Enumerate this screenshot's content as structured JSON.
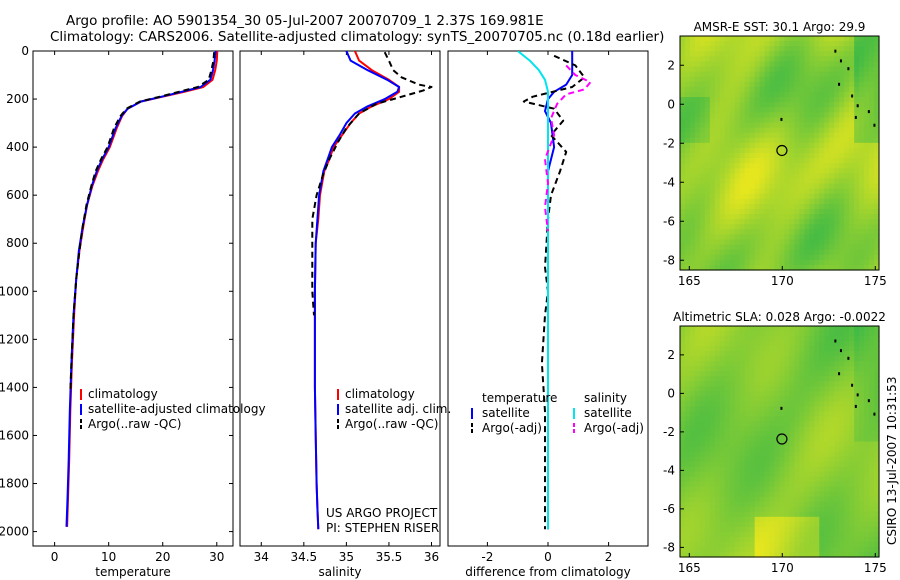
{
  "header": {
    "line1": "Argo profile: AO 5901354_30 05-Jul-2007 20070709_1 2.37S 169.981E",
    "line2": "Climatology: CARS2006. Satellite-adjusted climatology: synTS_20070705.nc (0.18d earlier)"
  },
  "credit": {
    "line1": "US ARGO PROJECT",
    "line2": "PI: STEPHEN RISER"
  },
  "stamp": "CSIRO 13-Jul-2007 10:31:53",
  "colors": {
    "climatology": "#ff0000",
    "satellite": "#0000ff",
    "argo": "#000000",
    "sal_sat": "#00e5ee",
    "sal_argo": "#ff00ff"
  },
  "chart_data": [
    {
      "type": "line",
      "xlabel": "temperature",
      "ylabel": "",
      "xlim": [
        -4,
        33
      ],
      "ylim": [
        2060,
        0
      ],
      "xticks": [
        0,
        10,
        20,
        30
      ],
      "yticks": [
        0,
        200,
        400,
        600,
        800,
        1000,
        1200,
        1400,
        1600,
        1800,
        2000
      ],
      "legend": [
        "climatology",
        "satellite-adjusted climatology",
        "Argo(..raw -QC)"
      ],
      "series": [
        {
          "name": "climatology",
          "color": "#ff0000",
          "dash": "",
          "x": [
            30.1,
            30.0,
            29.7,
            29.2,
            27.5,
            24.0,
            20.0,
            16.0,
            13.5,
            12.5,
            11.5,
            10.2,
            9.0,
            8.0,
            7.0,
            6.0,
            5.3,
            4.6,
            4.0,
            3.6,
            3.2,
            2.9,
            2.7,
            2.5,
            2.3
          ],
          "y": [
            0,
            40,
            80,
            120,
            150,
            170,
            190,
            210,
            240,
            270,
            320,
            400,
            450,
            500,
            560,
            640,
            730,
            830,
            950,
            1100,
            1300,
            1500,
            1700,
            1850,
            1980
          ]
        },
        {
          "name": "satellite-adjusted climatology",
          "color": "#0000ff",
          "dash": "",
          "x": [
            29.8,
            29.6,
            29.3,
            28.8,
            27.0,
            23.5,
            19.8,
            16.0,
            13.5,
            12.4,
            11.3,
            10.0,
            8.8,
            7.8,
            6.9,
            6.0,
            5.2,
            4.5,
            4.0,
            3.5,
            3.1,
            2.8,
            2.6,
            2.4,
            2.2
          ],
          "y": [
            0,
            40,
            80,
            120,
            150,
            170,
            190,
            210,
            240,
            270,
            320,
            400,
            450,
            500,
            560,
            640,
            730,
            830,
            950,
            1100,
            1300,
            1500,
            1700,
            1850,
            1980
          ]
        },
        {
          "name": "Argo(..raw -QC)",
          "color": "#000000",
          "dash": "6,4",
          "x": [
            29.5,
            29.4,
            29.0,
            28.5,
            26.5,
            23.0,
            19.5,
            15.8,
            13.3,
            12.2,
            11.0,
            9.8,
            8.6,
            7.6,
            6.8,
            5.9,
            5.2,
            4.6,
            4.0,
            3.5,
            3.1,
            2.9
          ],
          "y": [
            5,
            40,
            80,
            120,
            150,
            170,
            190,
            210,
            240,
            270,
            320,
            400,
            450,
            500,
            560,
            640,
            730,
            830,
            950,
            1100,
            1300,
            1420
          ]
        }
      ]
    },
    {
      "type": "line",
      "xlabel": "salinity",
      "ylabel": "",
      "xlim": [
        33.75,
        36.1
      ],
      "ylim": [
        2060,
        0
      ],
      "xticks": [
        34,
        34.5,
        35,
        35.5,
        36
      ],
      "yticks": [],
      "legend": [
        "climatology",
        "satellite adj. clim.",
        "Argo(..raw -QC)"
      ],
      "series": [
        {
          "name": "climatology",
          "color": "#ff0000",
          "dash": "",
          "x": [
            35.1,
            35.15,
            35.3,
            35.5,
            35.62,
            35.62,
            35.5,
            35.3,
            35.15,
            35.05,
            34.95,
            34.85,
            34.8,
            34.74,
            34.69,
            34.67,
            34.64,
            34.63,
            34.63,
            34.63,
            34.64,
            34.65,
            34.66,
            34.67
          ],
          "y": [
            0,
            40,
            80,
            120,
            150,
            170,
            200,
            230,
            260,
            300,
            350,
            400,
            450,
            500,
            600,
            700,
            800,
            1000,
            1200,
            1400,
            1600,
            1800,
            1900,
            1990
          ]
        },
        {
          "name": "satellite adj. clim.",
          "color": "#0000ff",
          "dash": "",
          "x": [
            35.0,
            35.05,
            35.25,
            35.48,
            35.62,
            35.6,
            35.45,
            35.25,
            35.1,
            35.0,
            34.92,
            34.83,
            34.78,
            34.73,
            34.68,
            34.66,
            34.64,
            34.63,
            34.63,
            34.63,
            34.64,
            34.65,
            34.66,
            34.67
          ],
          "y": [
            0,
            40,
            80,
            120,
            150,
            170,
            200,
            230,
            260,
            300,
            350,
            400,
            450,
            500,
            600,
            700,
            800,
            1000,
            1200,
            1400,
            1600,
            1800,
            1900,
            1990
          ]
        },
        {
          "name": "Argo(..raw -QC)",
          "color": "#000000",
          "dash": "6,4",
          "x": [
            35.45,
            35.5,
            35.55,
            35.65,
            35.85,
            36.0,
            35.9,
            35.65,
            35.35,
            35.15,
            35.0,
            34.9,
            34.8,
            34.72,
            34.65,
            34.6,
            34.6,
            34.6,
            34.6,
            34.62
          ],
          "y": [
            5,
            40,
            80,
            110,
            140,
            150,
            165,
            190,
            220,
            260,
            320,
            380,
            450,
            520,
            600,
            700,
            800,
            900,
            1000,
            1100
          ]
        }
      ]
    },
    {
      "type": "line",
      "xlabel": "difference from climatology",
      "ylabel": "",
      "xlim": [
        -3.3,
        3.3
      ],
      "ylim": [
        2060,
        0
      ],
      "xticks": [
        -2,
        0,
        2
      ],
      "yticks": [],
      "legend_groups": [
        {
          "title": "temperature",
          "items": [
            "satellite",
            "Argo(-adj)"
          ]
        },
        {
          "title": "salinity",
          "items": [
            "satellite",
            "Argo(-adj)"
          ]
        }
      ],
      "series": [
        {
          "name": "satellite",
          "group": "temperature",
          "color": "#0000ff",
          "dash": "",
          "x": [
            0.8,
            0.8,
            0.8,
            0.6,
            0.2,
            0.0,
            -0.1,
            0.1,
            0.2,
            0.0,
            0.0,
            0.0,
            0.0,
            0.0,
            0.0,
            0.0
          ],
          "y": [
            0,
            60,
            100,
            140,
            170,
            200,
            250,
            300,
            400,
            500,
            700,
            900,
            1200,
            1500,
            1800,
            1990
          ]
        },
        {
          "name": "Argo(-adj)",
          "group": "temperature",
          "color": "#000000",
          "dash": "6,4",
          "x": [
            0.2,
            0.9,
            1.2,
            0.8,
            -0.5,
            -0.8,
            0.2,
            0.5,
            0.1,
            0.6,
            0.4,
            0.1,
            0.0,
            -0.1,
            0.0,
            -0.1,
            -0.2,
            -0.1,
            -0.1,
            -0.1
          ],
          "y": [
            20,
            60,
            110,
            150,
            190,
            210,
            240,
            290,
            350,
            420,
            500,
            600,
            700,
            900,
            1000,
            1100,
            1300,
            1500,
            1700,
            1990
          ]
        },
        {
          "name": "satellite",
          "group": "salinity",
          "color": "#00e5ee",
          "dash": "",
          "x": [
            -1.0,
            -0.6,
            -0.3,
            -0.1,
            0.0,
            0.0,
            0.0,
            0.0,
            0.0,
            0.0,
            0.0,
            0.0,
            0.0,
            0.0,
            0.0,
            0.0
          ],
          "y": [
            0,
            40,
            80,
            120,
            170,
            200,
            250,
            300,
            400,
            500,
            700,
            900,
            1200,
            1500,
            1800,
            1990
          ]
        },
        {
          "name": "Argo(-adj)",
          "group": "salinity",
          "color": "#ff00ff",
          "dash": "6,4",
          "x": [
            0.6,
            0.9,
            1.4,
            1.2,
            0.6,
            0.3,
            0.1,
            0.2,
            -0.1,
            0.0,
            -0.1,
            0.0
          ],
          "y": [
            60,
            100,
            130,
            160,
            180,
            220,
            280,
            350,
            450,
            550,
            650,
            750
          ]
        }
      ]
    },
    {
      "type": "heatmap",
      "title": "AMSR-E SST: 30.1 Argo: 29.9",
      "xlim": [
        164.5,
        175.2
      ],
      "ylim": [
        -8.5,
        3.5
      ],
      "xticks": [
        165,
        170,
        175
      ],
      "yticks": [
        -8,
        -6,
        -4,
        -2,
        0,
        2
      ],
      "marker": {
        "x": 169.98,
        "y": -2.37
      }
    },
    {
      "type": "heatmap",
      "title": "Altimetric SLA: 0.028 Argo: -0.0022",
      "xlim": [
        164.5,
        175.2
      ],
      "ylim": [
        -8.5,
        3.5
      ],
      "xticks": [
        165,
        170,
        175
      ],
      "yticks": [
        -8,
        -6,
        -4,
        -2,
        0,
        2
      ],
      "marker": {
        "x": 169.98,
        "y": -2.37
      }
    }
  ]
}
